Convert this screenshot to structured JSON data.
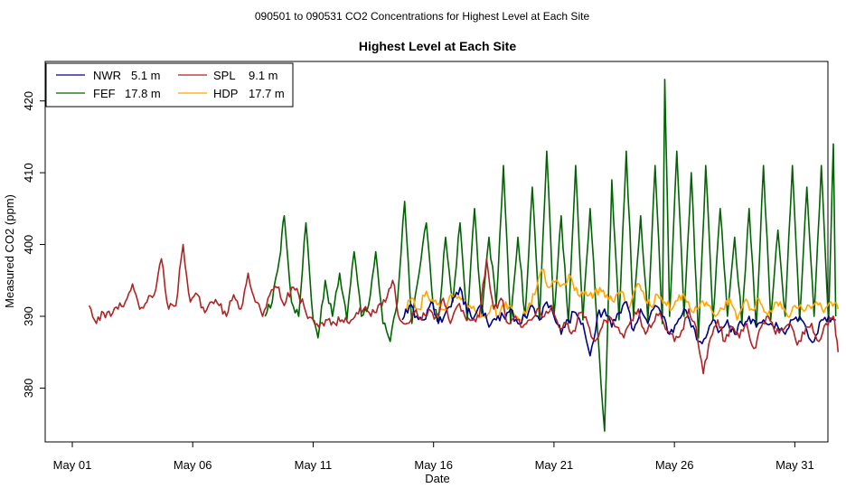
{
  "page_title": "090501  to  090531 CO2 Concentrations for Highest Level at Each Site",
  "chart_data": {
    "type": "line",
    "title": "Highest Level at Each Site",
    "xlabel": "Date",
    "ylabel": "Measured CO2 (ppm)",
    "xlim": [
      0,
      32.5
    ],
    "ylim": [
      372.5,
      425.5
    ],
    "x_ticks": [
      0,
      5,
      10,
      15,
      20,
      25,
      30
    ],
    "x_tick_labels": [
      "May 01",
      "May 06",
      "May 11",
      "May 16",
      "May 21",
      "May 26",
      "May 31"
    ],
    "y_ticks": [
      380,
      390,
      400,
      410,
      420
    ],
    "y_tick_labels": [
      "380",
      "390",
      "400",
      "410",
      "420"
    ],
    "x_units": "days since May 01",
    "legend": {
      "position": "top-left",
      "entries": [
        {
          "name": "NWR",
          "height": "5.1 m",
          "color": "#00008B"
        },
        {
          "name": "FEF",
          "height": "17.8 m",
          "color": "#006400"
        },
        {
          "name": "SPL",
          "height": "9.1 m",
          "color": "#B22222"
        },
        {
          "name": "HDP",
          "height": "17.7 m",
          "color": "#FFA500"
        }
      ]
    },
    "series": [
      {
        "name": "NWR",
        "color": "#00008B",
        "x": [
          13.7,
          14.0,
          14.3,
          14.6,
          14.9,
          15.2,
          15.5,
          15.8,
          16.1,
          16.4,
          16.7,
          17.0,
          17.3,
          17.6,
          17.9,
          18.2,
          18.5,
          18.8,
          19.1,
          19.4,
          19.7,
          20.0,
          20.3,
          20.6,
          20.9,
          21.2,
          21.5,
          21.8,
          22.1,
          22.4,
          22.7,
          23.0,
          23.3,
          23.6,
          23.9,
          24.2,
          24.5,
          24.8,
          25.1,
          25.4,
          25.7,
          26.0,
          26.3,
          26.6,
          26.9,
          27.2,
          27.5,
          27.8,
          28.1,
          28.4,
          28.7,
          29.0,
          29.3,
          29.6,
          29.9,
          30.2,
          30.5,
          30.8,
          31.1,
          31.4,
          31.7
        ],
        "y": [
          389.5,
          391.5,
          390,
          389.5,
          392,
          389,
          390.5,
          392.5,
          394,
          390.5,
          390,
          391.5,
          388.5,
          389.5,
          390,
          391,
          389,
          390,
          391.5,
          389.5,
          392,
          390,
          387.5,
          389.5,
          390.5,
          389,
          384.5,
          390,
          391,
          388.5,
          390.5,
          392,
          388,
          391,
          389,
          391.5,
          390,
          387.5,
          389,
          391,
          388.5,
          386.5,
          387,
          389.5,
          388,
          389.5,
          387.5,
          389,
          390,
          388.5,
          389.5,
          389,
          388.5,
          387.5,
          389.5,
          390,
          388,
          386.5,
          389.5,
          390,
          389.5
        ]
      },
      {
        "name": "FEF",
        "color": "#006400",
        "x": [
          8.0,
          8.3,
          8.6,
          8.8,
          9.1,
          9.4,
          9.7,
          10.0,
          10.2,
          10.5,
          10.8,
          11.1,
          11.4,
          11.7,
          12.0,
          12.3,
          12.6,
          12.9,
          13.2,
          13.5,
          13.8,
          14.1,
          14.4,
          14.7,
          15.0,
          15.2,
          15.5,
          15.8,
          16.1,
          16.4,
          16.7,
          17.0,
          17.3,
          17.6,
          17.9,
          18.2,
          18.5,
          18.8,
          19.1,
          19.4,
          19.7,
          20.0,
          20.3,
          20.6,
          20.9,
          21.2,
          21.5,
          21.8,
          22.1,
          22.2,
          22.4,
          22.7,
          23.0,
          23.3,
          23.6,
          23.9,
          24.2,
          24.5,
          24.6,
          24.8,
          25.1,
          25.4,
          25.7,
          26.0,
          26.3,
          26.6,
          26.9,
          27.2,
          27.5,
          27.8,
          28.1,
          28.4,
          28.7,
          29.0,
          29.3,
          29.6,
          29.9,
          30.2,
          30.5,
          30.8,
          31.1,
          31.4,
          31.6,
          31.7
        ],
        "y": [
          390,
          392,
          398,
          404,
          392,
          390,
          403,
          389.5,
          387,
          395,
          390,
          396,
          389.5,
          399,
          390,
          391.5,
          399,
          389,
          386.5,
          392,
          406,
          389,
          396,
          403,
          391,
          389.5,
          401,
          392,
          403,
          389.5,
          405,
          390,
          401,
          391.5,
          411,
          389,
          401,
          390,
          408,
          389.5,
          413,
          390,
          404,
          389,
          411,
          389.5,
          405,
          388.5,
          374,
          385,
          409,
          389.5,
          413,
          390,
          404,
          389.5,
          411,
          389,
          423,
          390,
          413,
          390,
          410,
          387,
          411,
          389.5,
          405,
          390,
          401,
          389,
          405,
          388.5,
          411,
          389.5,
          402,
          390,
          411,
          389.5,
          408,
          390,
          411,
          389,
          414,
          390
        ]
      },
      {
        "name": "SPL",
        "color": "#B22222",
        "x": [
          0.7,
          1.0,
          1.3,
          1.6,
          1.9,
          2.2,
          2.5,
          2.8,
          3.1,
          3.4,
          3.7,
          4.0,
          4.3,
          4.6,
          4.9,
          5.2,
          5.5,
          5.8,
          6.1,
          6.4,
          6.7,
          7.0,
          7.3,
          7.6,
          7.9,
          8.2,
          8.5,
          8.8,
          9.1,
          9.4,
          9.7,
          10.0,
          10.3,
          10.6,
          10.9,
          11.2,
          11.5,
          11.8,
          12.1,
          12.4,
          12.7,
          13.0,
          13.3,
          13.6,
          13.9,
          14.2,
          14.5,
          14.8,
          15.1,
          15.4,
          15.7,
          16.0,
          16.3,
          16.6,
          16.9,
          17.2,
          17.5,
          17.8,
          18.1,
          18.4,
          18.7,
          19.0,
          19.3,
          19.6,
          19.9,
          20.2,
          20.5,
          20.8,
          21.1,
          21.4,
          21.7,
          22.0,
          22.3,
          22.6,
          22.9,
          23.2,
          23.5,
          23.8,
          24.1,
          24.4,
          24.7,
          25.0,
          25.3,
          25.6,
          25.9,
          26.2,
          26.5,
          26.8,
          27.1,
          27.4,
          27.7,
          28.0,
          28.3,
          28.6,
          28.9,
          29.2,
          29.5,
          29.8,
          30.1,
          30.4,
          30.7,
          31.0,
          31.3,
          31.6,
          31.8
        ],
        "y": [
          391.5,
          389,
          390.5,
          390,
          391,
          392,
          394.5,
          391,
          392,
          393,
          398,
          391,
          391.5,
          400,
          392,
          393,
          390.5,
          392,
          391.5,
          390,
          393,
          391,
          396,
          392,
          390,
          393,
          394,
          391.5,
          394,
          393,
          390.5,
          389.5,
          389,
          389.5,
          389,
          389.5,
          389,
          390.5,
          391,
          390,
          391.5,
          392,
          395,
          389.5,
          389,
          390.5,
          389.5,
          391,
          390,
          392.5,
          389,
          391.5,
          390,
          389.5,
          390,
          398,
          391,
          392.5,
          389,
          390,
          388.5,
          389.5,
          391,
          390,
          391.5,
          388.5,
          389,
          388,
          390.5,
          389,
          386.5,
          388.5,
          390,
          388.5,
          387,
          389.5,
          391,
          387.5,
          389,
          390.5,
          388,
          386.5,
          388,
          391,
          388.5,
          382,
          387,
          389.5,
          386.5,
          388.5,
          387,
          389,
          385.5,
          388.5,
          390,
          387.5,
          388,
          389,
          386,
          387.5,
          389,
          386.5,
          389,
          390,
          385
        ]
      },
      {
        "name": "HDP",
        "color": "#FFA500",
        "x": [
          13.8,
          14.1,
          14.4,
          14.7,
          15.0,
          15.3,
          15.6,
          15.9,
          16.2,
          16.5,
          16.8,
          17.1,
          17.4,
          17.7,
          18.0,
          18.3,
          18.6,
          18.9,
          19.2,
          19.5,
          19.8,
          20.1,
          20.4,
          20.7,
          21.0,
          21.3,
          21.6,
          21.9,
          22.2,
          22.5,
          22.8,
          23.1,
          23.4,
          23.7,
          24.0,
          24.3,
          24.6,
          24.9,
          25.2,
          25.5,
          25.8,
          26.1,
          26.4,
          26.7,
          27.0,
          27.3,
          27.6,
          27.9,
          28.2,
          28.5,
          28.8,
          29.1,
          29.4,
          29.7,
          30.0,
          30.3,
          30.6,
          30.9,
          31.2,
          31.5,
          31.8
        ],
        "y": [
          391,
          392.5,
          391,
          393.5,
          392,
          391,
          392,
          393,
          392.5,
          391.5,
          390.5,
          390,
          391.5,
          390,
          392,
          390.5,
          389.5,
          391,
          393,
          396.5,
          394,
          395,
          394.5,
          395.5,
          393,
          393.5,
          392.5,
          394,
          393,
          392,
          393.5,
          391,
          394,
          393.5,
          391.5,
          393,
          392,
          391,
          393,
          392,
          390.5,
          392,
          391.5,
          390,
          391,
          392.5,
          389.5,
          392,
          391,
          392.5,
          390.5,
          391,
          392,
          390,
          391.5,
          391,
          391.5,
          392,
          390.5,
          392,
          391
        ]
      }
    ]
  }
}
